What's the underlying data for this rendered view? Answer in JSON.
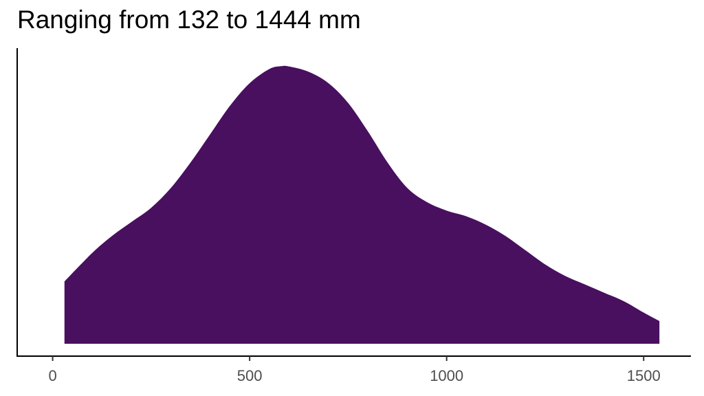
{
  "chart_data": {
    "type": "area",
    "title": "Ranging from 132 to 1444 mm",
    "xlabel": "",
    "ylabel": "",
    "xlim": [
      -90,
      1620
    ],
    "ylim": [
      0,
      1.0
    ],
    "x_ticks": [
      0,
      500,
      1000,
      1500
    ],
    "x_tick_labels": [
      "0",
      "500",
      "1000",
      "1500"
    ],
    "y_axis_ticks_shown": false,
    "grid": false,
    "legend": "none",
    "fill_color": "#48105e",
    "series": [
      {
        "x": [
          30,
          100,
          150,
          200,
          250,
          300,
          350,
          400,
          450,
          500,
          550,
          580,
          600,
          650,
          700,
          750,
          800,
          850,
          900,
          950,
          1000,
          1050,
          1100,
          1150,
          1200,
          1250,
          1300,
          1350,
          1400,
          1450,
          1500,
          1540
        ],
        "values": [
          0.22,
          0.32,
          0.38,
          0.43,
          0.48,
          0.55,
          0.64,
          0.74,
          0.84,
          0.92,
          0.97,
          0.98,
          0.979,
          0.96,
          0.92,
          0.85,
          0.75,
          0.64,
          0.55,
          0.5,
          0.47,
          0.45,
          0.42,
          0.38,
          0.33,
          0.28,
          0.24,
          0.21,
          0.18,
          0.15,
          0.11,
          0.08
        ]
      }
    ]
  }
}
